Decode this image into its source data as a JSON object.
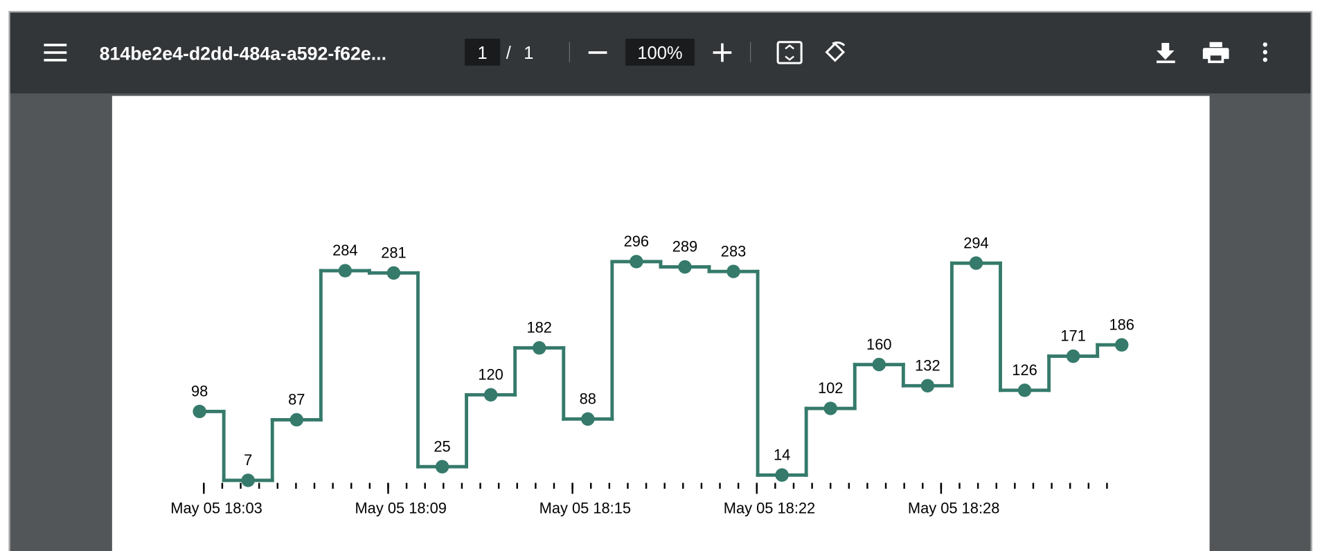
{
  "toolbar": {
    "filename": "814be2e4-d2dd-484a-a592-f62e...",
    "page": "1",
    "separator": "/",
    "page_count": "1",
    "zoom": "100%"
  },
  "chart_data": {
    "type": "step",
    "color": "#357a6b",
    "x": [
      3.46,
      5.04,
      6.62,
      8.2,
      9.78,
      11.36,
      12.94,
      14.52,
      16.1,
      17.68,
      19.26,
      20.84,
      22.42,
      24.0,
      25.58,
      27.16,
      28.74,
      30.32,
      31.9,
      33.48
    ],
    "values": [
      98,
      7,
      87,
      284,
      281,
      25,
      120,
      182,
      88,
      296,
      289,
      283,
      14,
      102,
      160,
      132,
      294,
      126,
      171,
      186
    ],
    "xlim": [
      2.5,
      34.5
    ],
    "ylim": [
      0,
      300
    ],
    "xticks": [
      {
        "value": 3.6,
        "label": "May 05 18:03"
      },
      {
        "value": 9.6,
        "label": "May 05 18:09"
      },
      {
        "value": 15.6,
        "label": "May 05 18:15"
      },
      {
        "value": 21.6,
        "label": "May 05 18:22"
      },
      {
        "value": 27.6,
        "label": "May 05 18:28"
      }
    ],
    "xticks_minor": [
      3.6,
      4.2,
      4.8,
      5.4,
      6.0,
      6.6,
      7.2,
      7.8,
      8.4,
      9.0,
      9.6,
      10.2,
      10.8,
      11.4,
      12.0,
      12.6,
      13.2,
      13.8,
      14.4,
      15.0,
      15.6,
      16.2,
      16.8,
      17.4,
      18.0,
      18.6,
      19.2,
      19.8,
      20.4,
      21.0,
      21.6,
      22.2,
      22.8,
      23.4,
      24.0,
      24.6,
      25.2,
      25.8,
      26.4,
      27.0,
      27.6,
      28.2,
      28.8,
      29.4,
      30.0,
      30.6,
      31.2,
      31.8,
      32.4,
      33.0
    ]
  }
}
